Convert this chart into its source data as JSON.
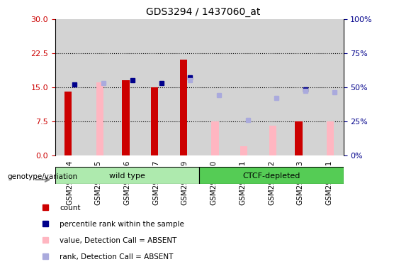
{
  "title": "GDS3294 / 1437060_at",
  "samples": [
    "GSM296254",
    "GSM296255",
    "GSM296256",
    "GSM296257",
    "GSM296259",
    "GSM296250",
    "GSM296251",
    "GSM296252",
    "GSM296253",
    "GSM296261"
  ],
  "groups": [
    "wild type",
    "wild type",
    "wild type",
    "wild type",
    "wild type",
    "CTCF-depleted",
    "CTCF-depleted",
    "CTCF-depleted",
    "CTCF-depleted",
    "CTCF-depleted"
  ],
  "count": [
    14,
    null,
    16.5,
    15,
    21,
    null,
    null,
    null,
    7.5,
    null
  ],
  "percentile_rank": [
    52,
    null,
    55,
    53,
    57,
    null,
    null,
    null,
    48,
    null
  ],
  "value_absent": [
    null,
    16,
    null,
    null,
    null,
    7.5,
    2,
    6.5,
    null,
    7.5
  ],
  "rank_absent": [
    null,
    53,
    null,
    null,
    55,
    44,
    26,
    42,
    47,
    46
  ],
  "ylim_left": [
    0,
    30
  ],
  "ylim_right": [
    0,
    100
  ],
  "yticks_left": [
    0,
    7.5,
    15,
    22.5,
    30
  ],
  "yticks_right": [
    0,
    25,
    50,
    75,
    100
  ],
  "group1_label": "wild type",
  "group2_label": "CTCF-depleted",
  "group1_color": "#aeeaae",
  "group2_color": "#55cc55",
  "bar_bg": "#d3d3d3",
  "count_color": "#cc0000",
  "percentile_color": "#00008b",
  "value_absent_color": "#ffb6c1",
  "rank_absent_color": "#aaaadd",
  "bar_width": 0.35,
  "gridlines": [
    7.5,
    15,
    22.5
  ]
}
